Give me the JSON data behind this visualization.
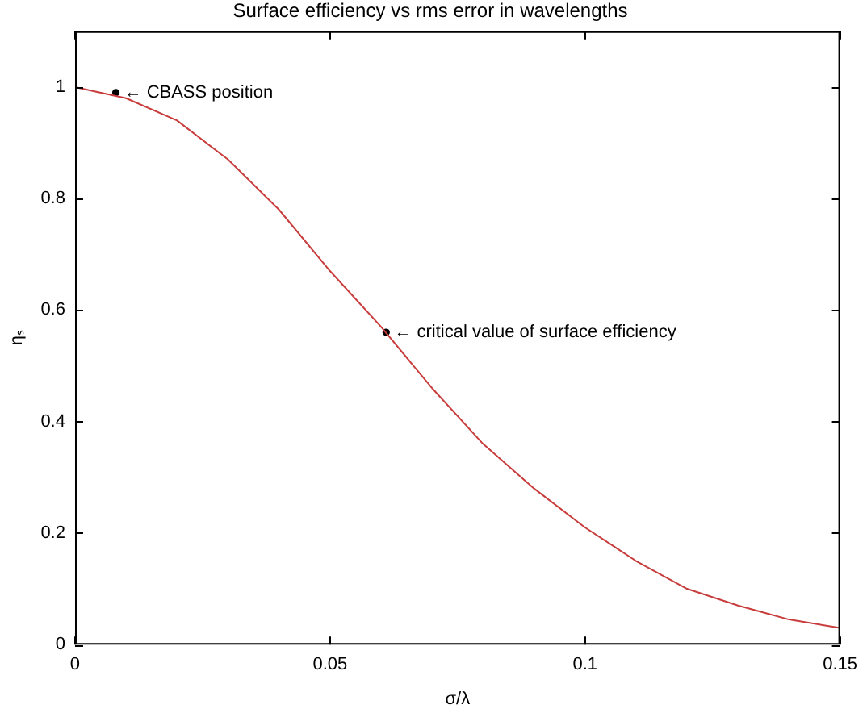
{
  "chart_data": {
    "type": "line",
    "title": "Surface efficiency vs rms error in wavelengths",
    "xlabel": "σ/λ",
    "ylabel": "ηₛ",
    "x": [
      0,
      0.01,
      0.02,
      0.03,
      0.04,
      0.05,
      0.06,
      0.07,
      0.08,
      0.09,
      0.1,
      0.11,
      0.12,
      0.13,
      0.14,
      0.15
    ],
    "series": [
      {
        "type": "line",
        "color": "#c83c3c",
        "values": [
          1,
          0.98,
          0.94,
          0.87,
          0.78,
          0.67,
          0.57,
          0.46,
          0.36,
          0.28,
          0.21,
          0.15,
          0.1,
          0.07,
          0.045,
          0.03
        ]
      },
      {
        "type": "scatter",
        "marker": "circle",
        "color": "#000000",
        "x": [
          0.008,
          0.061
        ],
        "values": [
          0.99,
          0.56
        ]
      }
    ],
    "annotations": [
      {
        "text": "← CBASS position",
        "x": 0.008,
        "y": 0.99
      },
      {
        "text": "← critical value of surface efficiency",
        "x": 0.061,
        "y": 0.56
      }
    ],
    "xlim": [
      0,
      0.15
    ],
    "xticks": [
      0,
      0.05,
      0.1,
      0.15
    ],
    "ylim": [
      0,
      1.1
    ],
    "yticks": [
      0,
      0.2,
      0.4,
      0.6,
      0.8,
      1
    ],
    "grid": false,
    "legend": false,
    "line_style": "solid"
  }
}
